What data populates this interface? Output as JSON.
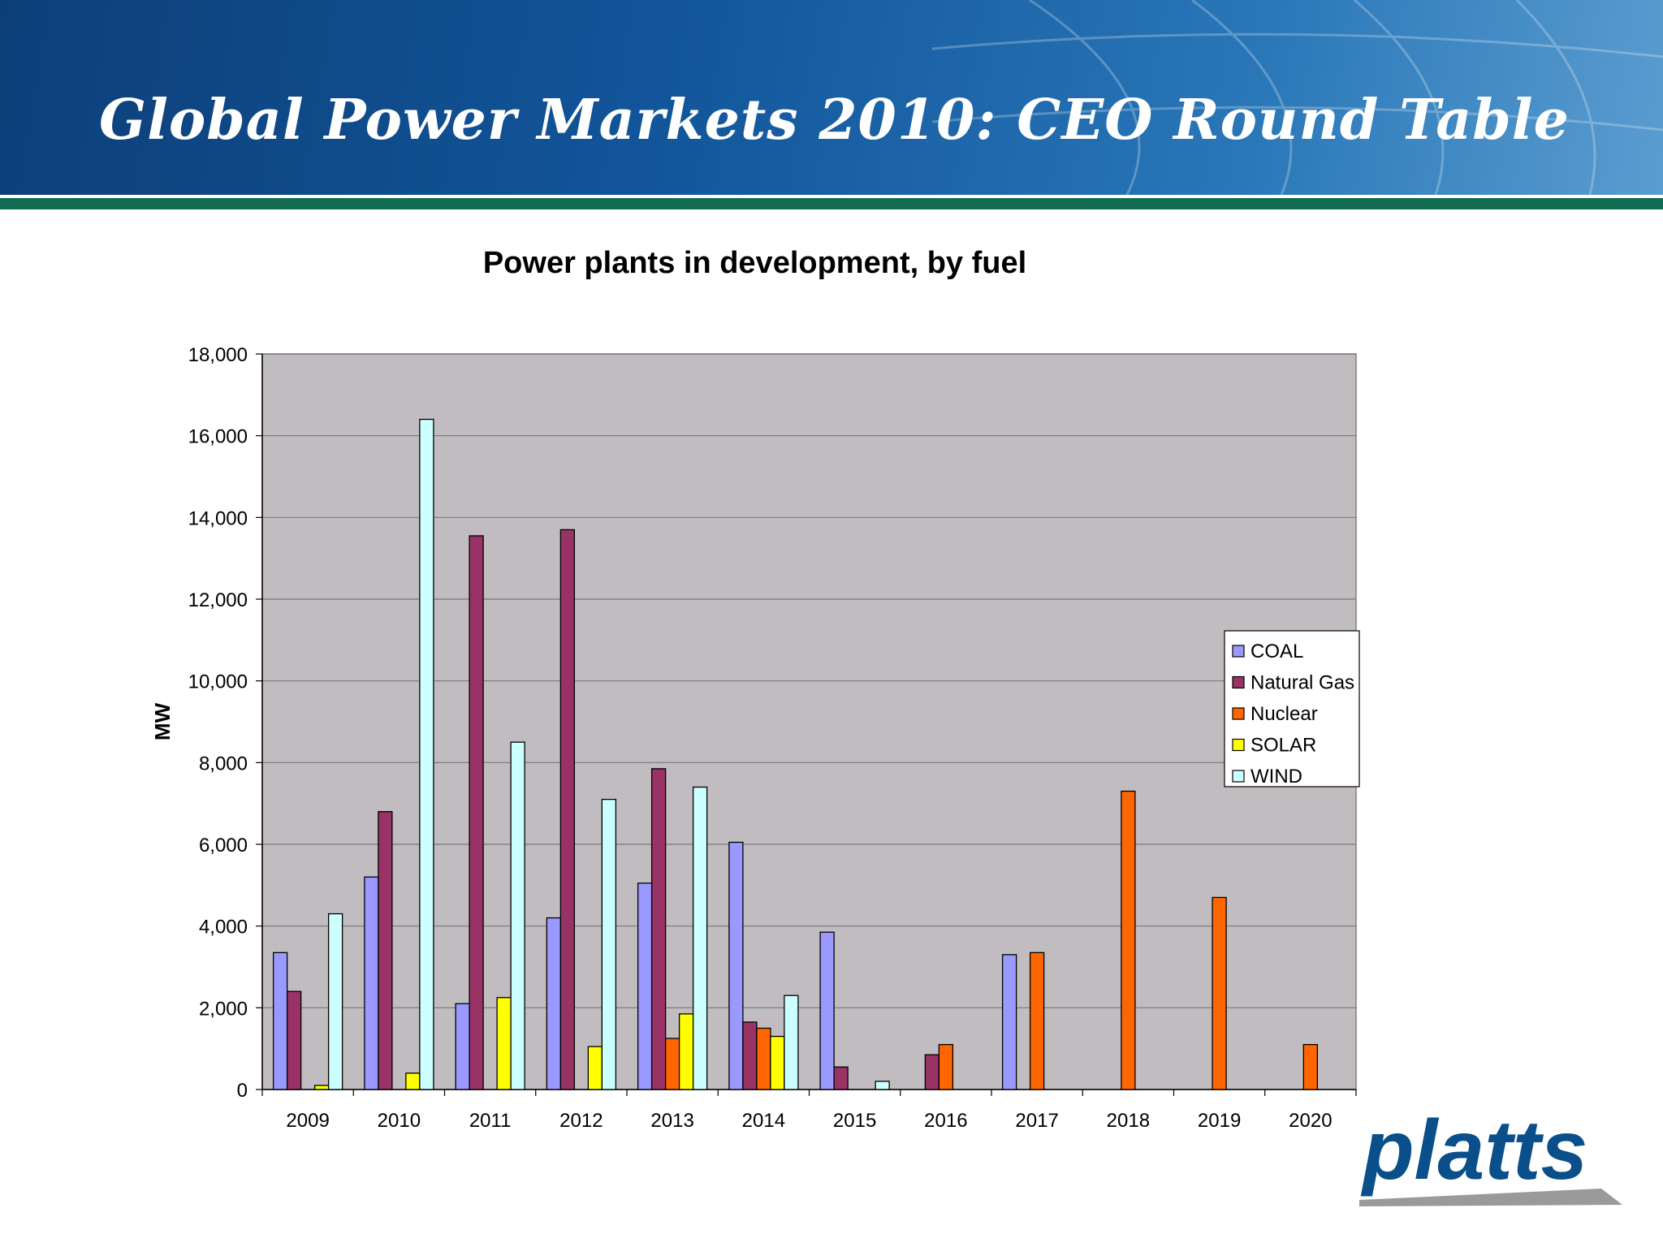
{
  "header": {
    "title": "Global Power Markets 2010: CEO Round Table"
  },
  "logo": {
    "text": "platts",
    "color": "#0a4f8a"
  },
  "chart_data": {
    "type": "bar",
    "title": "Power plants in development, by fuel",
    "xlabel": "",
    "ylabel": "MW",
    "ylim": [
      0,
      18000
    ],
    "yticks": [
      0,
      2000,
      4000,
      6000,
      8000,
      10000,
      12000,
      14000,
      16000,
      18000
    ],
    "ytick_labels": [
      "0",
      "2,000",
      "4,000",
      "6,000",
      "8,000",
      "10,000",
      "12,000",
      "14,000",
      "16,000",
      "18,000"
    ],
    "grid": true,
    "legend_position": "right",
    "categories": [
      "2009",
      "2010",
      "2011",
      "2012",
      "2013",
      "2014",
      "2015",
      "2016",
      "2017",
      "2018",
      "2019",
      "2020"
    ],
    "series": [
      {
        "name": "COAL",
        "color": "#9999ff",
        "values": [
          3350,
          5200,
          2100,
          4200,
          5050,
          6050,
          3850,
          0,
          3300,
          0,
          0,
          0
        ]
      },
      {
        "name": "Natural Gas",
        "color": "#993366",
        "values": [
          2400,
          6800,
          13550,
          13700,
          7850,
          1650,
          550,
          850,
          0,
          0,
          0,
          0
        ]
      },
      {
        "name": "Nuclear",
        "color": "#ff6600",
        "values": [
          0,
          0,
          0,
          0,
          1250,
          1500,
          0,
          1100,
          3350,
          7300,
          4700,
          1100
        ]
      },
      {
        "name": "SOLAR",
        "color": "#ffff00",
        "values": [
          100,
          400,
          2250,
          1050,
          1850,
          1300,
          0,
          0,
          0,
          0,
          0,
          0
        ]
      },
      {
        "name": "WIND",
        "color": "#ccffff",
        "values": [
          4300,
          16400,
          8500,
          7100,
          7400,
          2300,
          200,
          0,
          0,
          0,
          0,
          0
        ]
      }
    ],
    "plot_background": "#c0bcc0"
  }
}
